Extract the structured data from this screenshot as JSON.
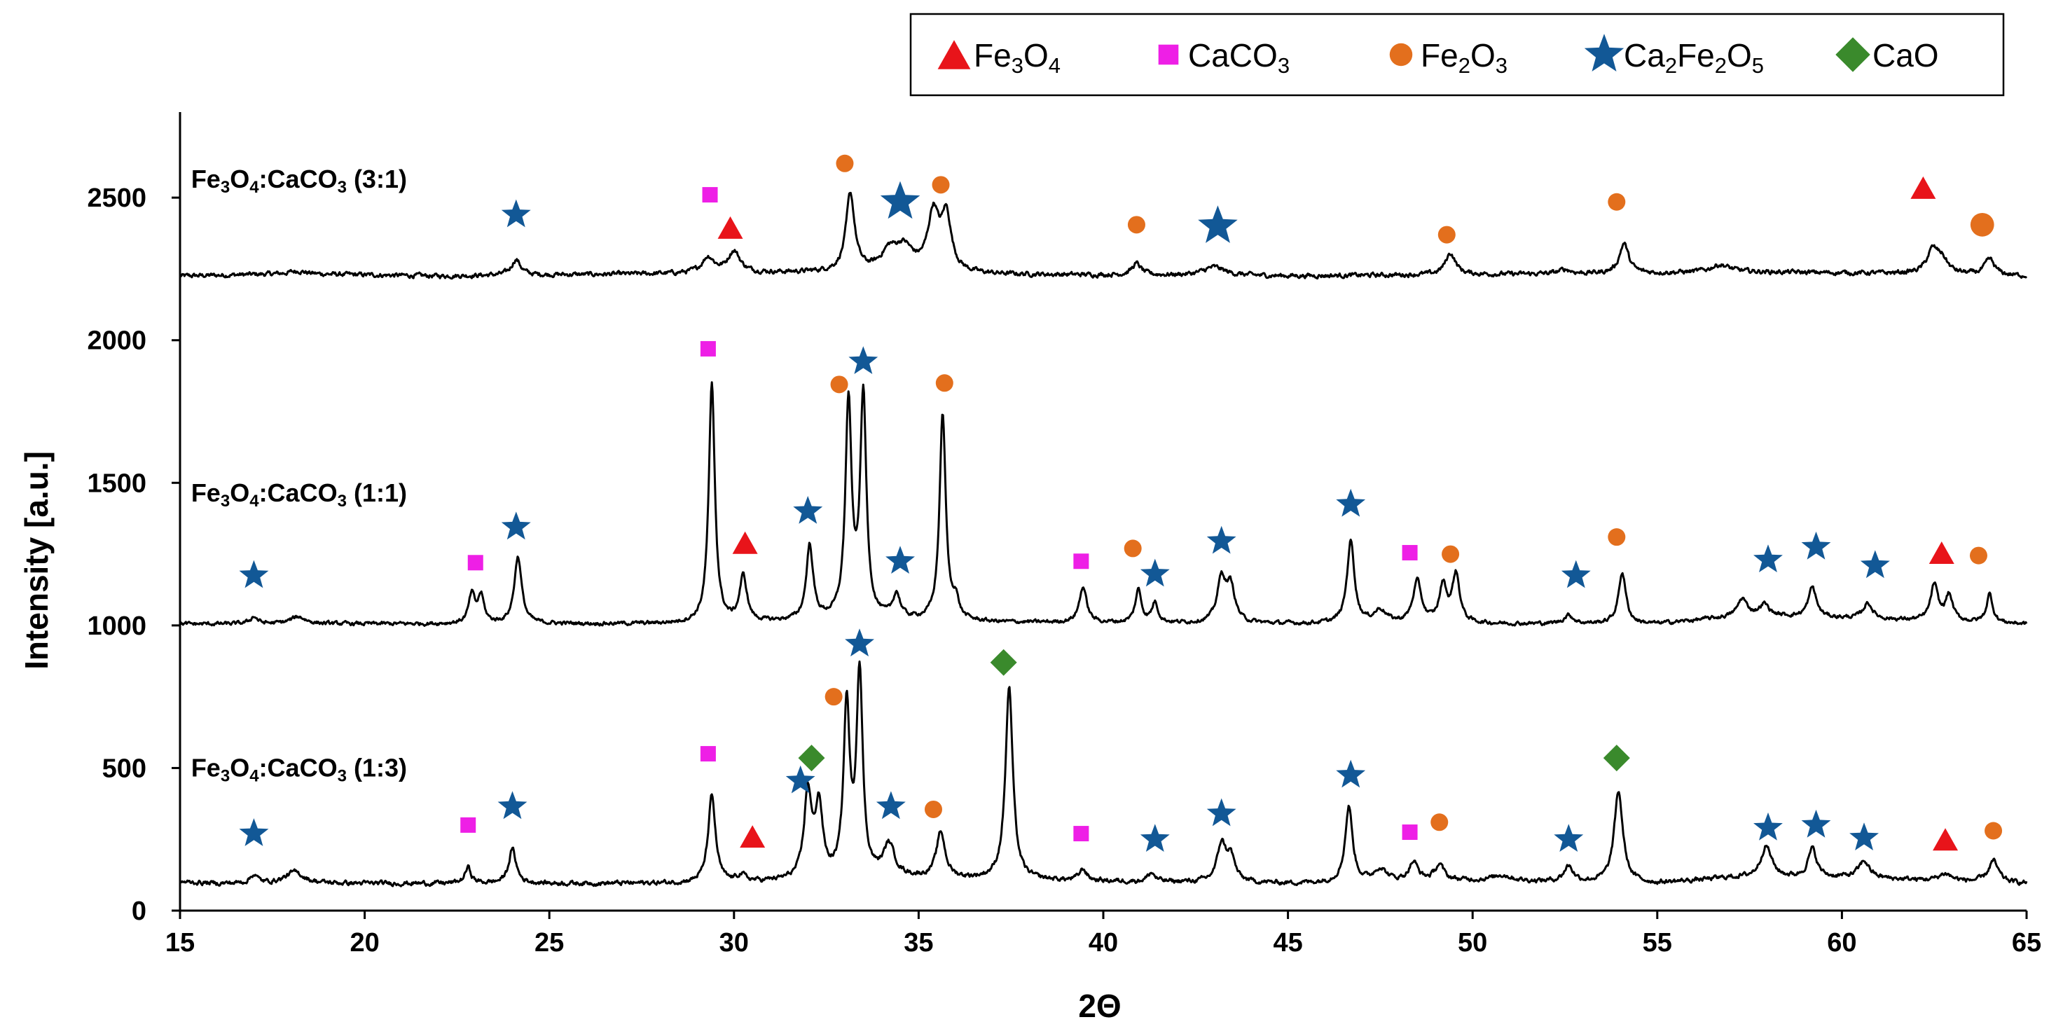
{
  "chart_data": {
    "type": "line",
    "title": "",
    "xlabel": "2Θ",
    "ylabel": "Intensity [a.u.]",
    "xlim": [
      15,
      65
    ],
    "ylim": [
      0,
      2800
    ],
    "xticks": [
      15,
      20,
      25,
      30,
      35,
      40,
      45,
      50,
      55,
      60,
      65
    ],
    "yticks": [
      0,
      500,
      1000,
      1500,
      2000,
      2500
    ],
    "grid": false,
    "legend_position": "top-right",
    "legend": [
      {
        "key": "fe3o4",
        "base": "Fe",
        "s1": "3",
        "mid": "O",
        "s2": "4",
        "tail": "",
        "s3": "",
        "marker": "triangle",
        "color": "#e8141a"
      },
      {
        "key": "caco3",
        "base": "CaCO",
        "s1": "3",
        "mid": "",
        "s2": "",
        "tail": "",
        "s3": "",
        "marker": "square",
        "color": "#ee1fe6"
      },
      {
        "key": "fe2o3",
        "base": "Fe",
        "s1": "2",
        "mid": "O",
        "s2": "3",
        "tail": "",
        "s3": "",
        "marker": "circle",
        "color": "#e36f1d"
      },
      {
        "key": "ca2fe2o5",
        "base": "Ca",
        "s1": "2",
        "mid": "Fe",
        "s2": "2",
        "tail": "O",
        "s3": "5",
        "marker": "star",
        "color": "#125896"
      },
      {
        "key": "cao",
        "base": "CaO",
        "s1": "",
        "mid": "",
        "s2": "",
        "tail": "",
        "s3": "",
        "marker": "diamond",
        "color": "#3a8a2c"
      }
    ],
    "series": [
      {
        "name": "Fe3O4:CaCO3 (3:1)",
        "label": {
          "base": "Fe",
          "s1": "3",
          "mid": "O",
          "s2": "4",
          "rest": ":CaCO",
          "s3": "3",
          "ratio": "  (3:1)"
        },
        "label_pos": [
          15.3,
          2535
        ],
        "baseline": 2225,
        "noise": 6,
        "background": [
          [
            15,
            0
          ],
          [
            18,
            8
          ],
          [
            22,
            0
          ],
          [
            30,
            10
          ],
          [
            34,
            15
          ],
          [
            37,
            5
          ],
          [
            45,
            0
          ],
          [
            55,
            10
          ],
          [
            57,
            15
          ],
          [
            62,
            8
          ],
          [
            65,
            0
          ]
        ],
        "peaks": [
          [
            18.2,
            10,
            0.25
          ],
          [
            24.1,
            55,
            0.15
          ],
          [
            29.3,
            55,
            0.2
          ],
          [
            30.0,
            75,
            0.2
          ],
          [
            33.15,
            270,
            0.14
          ],
          [
            34.2,
            60,
            0.25
          ],
          [
            34.6,
            80,
            0.3
          ],
          [
            35.4,
            200,
            0.18
          ],
          [
            35.75,
            190,
            0.16
          ],
          [
            40.9,
            40,
            0.15
          ],
          [
            43.0,
            30,
            0.35
          ],
          [
            49.4,
            75,
            0.17
          ],
          [
            52.5,
            15,
            0.2
          ],
          [
            54.1,
            105,
            0.15
          ],
          [
            56.7,
            25,
            0.3
          ],
          [
            62.45,
            75,
            0.18
          ],
          [
            62.7,
            50,
            0.2
          ],
          [
            64.0,
            55,
            0.16
          ]
        ],
        "markers": [
          {
            "phase": "star",
            "x": 24.1,
            "y": 2440
          },
          {
            "phase": "square",
            "x": 29.35,
            "y": 2510
          },
          {
            "phase": "triangle",
            "x": 29.9,
            "y": 2395
          },
          {
            "phase": "circle",
            "x": 33.0,
            "y": 2620
          },
          {
            "phase": "star",
            "x": 34.5,
            "y": 2485,
            "big": true
          },
          {
            "phase": "circle",
            "x": 35.6,
            "y": 2545
          },
          {
            "phase": "circle",
            "x": 40.9,
            "y": 2405
          },
          {
            "phase": "star",
            "x": 43.1,
            "y": 2400,
            "big": true
          },
          {
            "phase": "circle",
            "x": 49.3,
            "y": 2370
          },
          {
            "phase": "circle",
            "x": 53.9,
            "y": 2485
          },
          {
            "phase": "triangle",
            "x": 62.2,
            "y": 2535
          },
          {
            "phase": "circle",
            "x": 63.8,
            "y": 2405,
            "big": true
          }
        ]
      },
      {
        "name": "Fe3O4:CaCO3 (1:1)",
        "label": {
          "base": "Fe",
          "s1": "3",
          "mid": "O",
          "s2": "4",
          "rest": ":CaCO",
          "s3": "3",
          "ratio": "  (1:1)"
        },
        "label_pos": [
          15.3,
          1435
        ],
        "baseline": 1005,
        "noise": 5,
        "background": [
          [
            15,
            0
          ],
          [
            30,
            0
          ],
          [
            33,
            15
          ],
          [
            37,
            5
          ],
          [
            45,
            0
          ],
          [
            55,
            0
          ],
          [
            57.5,
            30
          ],
          [
            60,
            20
          ],
          [
            65,
            0
          ]
        ],
        "peaks": [
          [
            17.0,
            25,
            0.12
          ],
          [
            18.2,
            25,
            0.25
          ],
          [
            22.9,
            100,
            0.1
          ],
          [
            23.15,
            95,
            0.1
          ],
          [
            24.15,
            235,
            0.12
          ],
          [
            29.4,
            835,
            0.1
          ],
          [
            30.25,
            160,
            0.12
          ],
          [
            32.05,
            260,
            0.11
          ],
          [
            33.1,
            750,
            0.1
          ],
          [
            33.5,
            775,
            0.1
          ],
          [
            34.4,
            85,
            0.12
          ],
          [
            35.65,
            725,
            0.1
          ],
          [
            36.0,
            65,
            0.1
          ],
          [
            39.45,
            125,
            0.12
          ],
          [
            40.95,
            115,
            0.1
          ],
          [
            41.4,
            70,
            0.1
          ],
          [
            43.2,
            150,
            0.14
          ],
          [
            43.45,
            120,
            0.14
          ],
          [
            46.7,
            290,
            0.12
          ],
          [
            47.5,
            45,
            0.2
          ],
          [
            48.5,
            145,
            0.14
          ],
          [
            49.2,
            130,
            0.12
          ],
          [
            49.55,
            170,
            0.12
          ],
          [
            52.6,
            30,
            0.15
          ],
          [
            54.05,
            180,
            0.12
          ],
          [
            57.3,
            60,
            0.15
          ],
          [
            57.9,
            40,
            0.15
          ],
          [
            59.2,
            105,
            0.13
          ],
          [
            60.7,
            55,
            0.15
          ],
          [
            62.5,
            125,
            0.12
          ],
          [
            62.9,
            90,
            0.12
          ],
          [
            64.0,
            100,
            0.1
          ]
        ],
        "markers": [
          {
            "phase": "star",
            "x": 17.0,
            "y": 1175
          },
          {
            "phase": "square",
            "x": 23.0,
            "y": 1220
          },
          {
            "phase": "star",
            "x": 24.1,
            "y": 1345
          },
          {
            "phase": "square",
            "x": 29.3,
            "y": 1970
          },
          {
            "phase": "triangle",
            "x": 30.3,
            "y": 1290
          },
          {
            "phase": "star",
            "x": 32.0,
            "y": 1400
          },
          {
            "phase": "circle",
            "x": 32.85,
            "y": 1845
          },
          {
            "phase": "star",
            "x": 33.5,
            "y": 1925
          },
          {
            "phase": "star",
            "x": 34.5,
            "y": 1225
          },
          {
            "phase": "circle",
            "x": 35.7,
            "y": 1850
          },
          {
            "phase": "square",
            "x": 39.4,
            "y": 1225
          },
          {
            "phase": "circle",
            "x": 40.8,
            "y": 1270
          },
          {
            "phase": "star",
            "x": 41.4,
            "y": 1180
          },
          {
            "phase": "star",
            "x": 43.2,
            "y": 1295
          },
          {
            "phase": "star",
            "x": 46.7,
            "y": 1425
          },
          {
            "phase": "square",
            "x": 48.3,
            "y": 1255
          },
          {
            "phase": "circle",
            "x": 49.4,
            "y": 1250
          },
          {
            "phase": "star",
            "x": 52.8,
            "y": 1175
          },
          {
            "phase": "circle",
            "x": 53.9,
            "y": 1310
          },
          {
            "phase": "star",
            "x": 58.0,
            "y": 1230
          },
          {
            "phase": "star",
            "x": 59.3,
            "y": 1275
          },
          {
            "phase": "star",
            "x": 60.9,
            "y": 1210
          },
          {
            "phase": "triangle",
            "x": 62.7,
            "y": 1255
          },
          {
            "phase": "circle",
            "x": 63.7,
            "y": 1245
          }
        ]
      },
      {
        "name": "Fe3O4:CaCO3 (1:3)",
        "label": {
          "base": "Fe",
          "s1": "3",
          "mid": "O",
          "s2": "4",
          "rest": ":CaCO",
          "s3": "3",
          "ratio": "  (1:3)"
        },
        "label_pos": [
          15.3,
          470
        ],
        "baseline": 95,
        "noise": 6,
        "background": [
          [
            15,
            5
          ],
          [
            16,
            0
          ],
          [
            20,
            0
          ],
          [
            30,
            0
          ],
          [
            34,
            20
          ],
          [
            38,
            10
          ],
          [
            45,
            0
          ],
          [
            50,
            10
          ],
          [
            55,
            0
          ],
          [
            57,
            20
          ],
          [
            60,
            20
          ],
          [
            65,
            0
          ]
        ],
        "peaks": [
          [
            17.0,
            30,
            0.12
          ],
          [
            18.1,
            40,
            0.3
          ],
          [
            22.8,
            55,
            0.1
          ],
          [
            24.0,
            120,
            0.12
          ],
          [
            29.4,
            305,
            0.12
          ],
          [
            30.2,
            25,
            0.15
          ],
          [
            32.0,
            300,
            0.12
          ],
          [
            32.3,
            250,
            0.12
          ],
          [
            33.05,
            595,
            0.1
          ],
          [
            33.4,
            715,
            0.1
          ],
          [
            34.2,
            110,
            0.18
          ],
          [
            35.6,
            160,
            0.14
          ],
          [
            37.45,
            675,
            0.12
          ],
          [
            39.45,
            40,
            0.12
          ],
          [
            41.3,
            30,
            0.12
          ],
          [
            43.2,
            130,
            0.14
          ],
          [
            43.45,
            85,
            0.14
          ],
          [
            46.65,
            265,
            0.12
          ],
          [
            47.5,
            45,
            0.2
          ],
          [
            48.4,
            65,
            0.15
          ],
          [
            49.1,
            55,
            0.15
          ],
          [
            50.8,
            20,
            0.3
          ],
          [
            52.6,
            55,
            0.15
          ],
          [
            53.95,
            320,
            0.14
          ],
          [
            57.95,
            110,
            0.18
          ],
          [
            59.2,
            100,
            0.14
          ],
          [
            60.6,
            60,
            0.18
          ],
          [
            62.8,
            25,
            0.2
          ],
          [
            64.1,
            75,
            0.16
          ]
        ],
        "markers": [
          {
            "phase": "star",
            "x": 17.0,
            "y": 270
          },
          {
            "phase": "square",
            "x": 22.8,
            "y": 300
          },
          {
            "phase": "star",
            "x": 24.0,
            "y": 365
          },
          {
            "phase": "square",
            "x": 29.3,
            "y": 550
          },
          {
            "phase": "triangle",
            "x": 30.5,
            "y": 260
          },
          {
            "phase": "star",
            "x": 31.8,
            "y": 455
          },
          {
            "phase": "diamond",
            "x": 32.1,
            "y": 535
          },
          {
            "phase": "circle",
            "x": 32.7,
            "y": 750
          },
          {
            "phase": "star",
            "x": 33.4,
            "y": 935
          },
          {
            "phase": "star",
            "x": 34.25,
            "y": 365
          },
          {
            "phase": "circle",
            "x": 35.4,
            "y": 355
          },
          {
            "phase": "diamond",
            "x": 37.3,
            "y": 870
          },
          {
            "phase": "square",
            "x": 39.4,
            "y": 270
          },
          {
            "phase": "star",
            "x": 41.4,
            "y": 250
          },
          {
            "phase": "star",
            "x": 43.2,
            "y": 340
          },
          {
            "phase": "star",
            "x": 46.7,
            "y": 475
          },
          {
            "phase": "square",
            "x": 48.3,
            "y": 275
          },
          {
            "phase": "circle",
            "x": 49.1,
            "y": 310
          },
          {
            "phase": "star",
            "x": 52.6,
            "y": 250
          },
          {
            "phase": "diamond",
            "x": 53.9,
            "y": 535
          },
          {
            "phase": "star",
            "x": 58.0,
            "y": 290
          },
          {
            "phase": "star",
            "x": 59.3,
            "y": 300
          },
          {
            "phase": "star",
            "x": 60.6,
            "y": 255
          },
          {
            "phase": "triangle",
            "x": 62.8,
            "y": 250
          },
          {
            "phase": "circle",
            "x": 64.1,
            "y": 280
          }
        ]
      }
    ]
  }
}
